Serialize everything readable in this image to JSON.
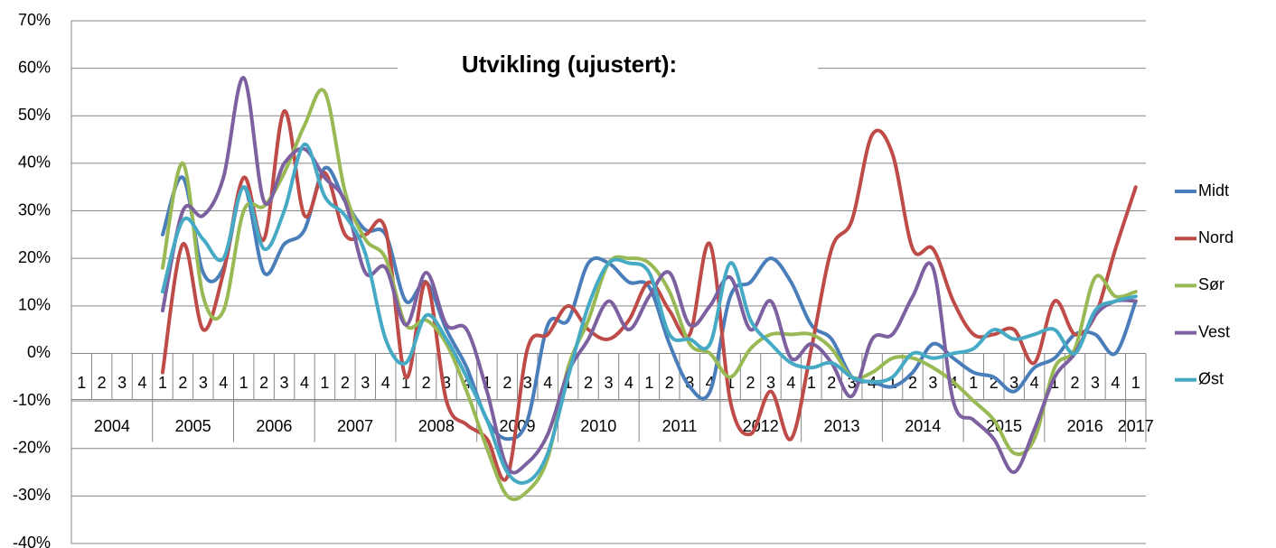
{
  "chart_data": {
    "type": "line",
    "title": "Utvikling (ujustert):",
    "categories": [
      "1",
      "2",
      "3",
      "4",
      "1",
      "2",
      "3",
      "4",
      "1",
      "2",
      "3",
      "4",
      "1",
      "2",
      "3",
      "4",
      "1",
      "2",
      "3",
      "4",
      "1",
      "2",
      "3",
      "4",
      "1",
      "2",
      "3",
      "4",
      "1",
      "2",
      "3",
      "4",
      "1",
      "2",
      "3",
      "4",
      "1",
      "2",
      "3",
      "4",
      "1",
      "2",
      "3",
      "4",
      "1",
      "2",
      "3",
      "4",
      "1",
      "2",
      "3",
      "4",
      "1"
    ],
    "years": [
      "2004",
      "2005",
      "2006",
      "2007",
      "2008",
      "2009",
      "2010",
      "2011",
      "2012",
      "2013",
      "2014",
      "2015",
      "2016",
      "2017"
    ],
    "ylim": [
      -40,
      70
    ],
    "yticks": [
      {
        "value": -40,
        "label": "-40%"
      },
      {
        "value": -30,
        "label": "-30%"
      },
      {
        "value": -20,
        "label": "-20%"
      },
      {
        "value": -10,
        "label": "-10%"
      },
      {
        "value": 0,
        "label": "0%"
      },
      {
        "value": 10,
        "label": "10%"
      },
      {
        "value": 20,
        "label": "20%"
      },
      {
        "value": 30,
        "label": "30%"
      },
      {
        "value": 40,
        "label": "40%"
      },
      {
        "value": 50,
        "label": "50%"
      },
      {
        "value": 60,
        "label": "60%"
      },
      {
        "value": 70,
        "label": "70%"
      }
    ],
    "grid": true,
    "legend": "right",
    "series": [
      {
        "name": "Midt",
        "color": "#4a7ebb",
        "values": [
          null,
          null,
          null,
          null,
          25,
          37,
          17,
          18,
          35,
          17,
          23,
          26,
          39,
          32,
          26,
          25,
          11,
          15,
          5,
          -3,
          -14,
          -18,
          -14,
          6,
          7,
          19,
          19,
          15,
          14,
          2,
          -7,
          -8,
          12,
          15,
          20,
          15,
          6,
          3,
          -5,
          -6,
          -7,
          -4,
          2,
          -1,
          -4,
          -5,
          -8,
          -3,
          -1,
          4,
          4,
          0,
          11
        ]
      },
      {
        "name": "Nord",
        "color": "#be4b48",
        "values": [
          null,
          null,
          null,
          null,
          -4,
          23,
          5,
          17,
          37,
          24,
          51,
          29,
          38,
          25,
          25,
          26,
          -5,
          15,
          -10,
          -15,
          -18,
          -26,
          1,
          4,
          10,
          5,
          3,
          7,
          15,
          9,
          4,
          23,
          -10,
          -17,
          -8,
          -18,
          1,
          22,
          28,
          46,
          42,
          22,
          22,
          11,
          4,
          4,
          5,
          -2,
          11,
          4,
          8,
          22,
          35
        ]
      },
      {
        "name": "Sør",
        "color": "#98b954",
        "values": [
          null,
          null,
          null,
          null,
          18,
          40,
          12,
          9,
          30,
          31,
          38,
          48,
          55,
          34,
          24,
          20,
          6,
          7,
          2,
          -8,
          -20,
          -30,
          -29,
          -22,
          -3,
          7,
          19,
          20,
          19,
          13,
          2,
          0,
          -5,
          1,
          4,
          4,
          4,
          1,
          -5,
          -4,
          -1,
          -1,
          -3,
          -6,
          -10,
          -14,
          -21,
          -18,
          -3,
          1,
          16,
          12,
          13
        ]
      },
      {
        "name": "Vest",
        "color": "#7d60a0",
        "values": [
          null,
          null,
          null,
          null,
          9,
          30,
          29,
          37,
          58,
          32,
          40,
          43,
          37,
          32,
          17,
          18,
          6,
          17,
          6,
          5,
          -8,
          -24,
          -23,
          -17,
          -4,
          3,
          11,
          5,
          12,
          17,
          6,
          10,
          16,
          5,
          11,
          -1,
          2,
          -2,
          -9,
          3,
          4,
          12,
          18,
          -10,
          -14,
          -18,
          -25,
          -16,
          -5,
          0,
          8,
          11,
          11
        ]
      },
      {
        "name": "Øst",
        "color": "#46aac5",
        "values": [
          null,
          null,
          null,
          null,
          13,
          28,
          24,
          20,
          35,
          22,
          30,
          44,
          33,
          29,
          21,
          3,
          -2,
          8,
          3,
          -5,
          -14,
          -25,
          -27,
          -21,
          -5,
          10,
          19,
          19,
          17,
          4,
          3,
          2,
          19,
          7,
          2,
          -2,
          -3,
          -2,
          -5,
          -6,
          -5,
          0,
          -1,
          0,
          1,
          5,
          3,
          4,
          5,
          0,
          9,
          11,
          12
        ]
      }
    ]
  }
}
